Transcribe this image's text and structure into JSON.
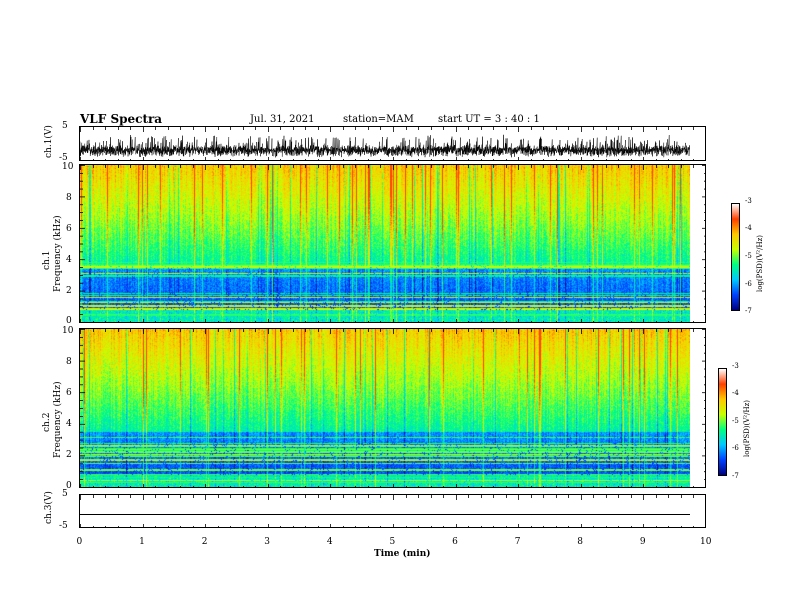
{
  "header": {
    "title": "VLF Spectra",
    "date": "Jul. 31, 2021",
    "station": "station=MAM",
    "start": "start UT =  3 : 40 : 1"
  },
  "x_axis": {
    "label": "Time (min)",
    "ticks": [
      "0",
      "1",
      "2",
      "3",
      "4",
      "5",
      "6",
      "7",
      "8",
      "9",
      "10"
    ]
  },
  "panels": {
    "ch1v": {
      "ylabel": "ch.1(V)",
      "ticks": [
        "5",
        "-5"
      ]
    },
    "ch1spec": {
      "ylabel_line1": "ch.1",
      "ylabel_line2": "Frequency (kHz)",
      "ticks": [
        "10",
        "8",
        "6",
        "4",
        "2",
        "0"
      ]
    },
    "ch2spec": {
      "ylabel_line1": "ch.2",
      "ylabel_line2": "Frequency (kHz)",
      "ticks": [
        "10",
        "8",
        "6",
        "4",
        "2",
        "0"
      ]
    },
    "ch3v": {
      "ylabel": "ch.3(V)",
      "ticks": [
        "5",
        "-5"
      ]
    }
  },
  "colorbar": {
    "label": "log(PSD)(V²/Hz)",
    "ticks": [
      "-3",
      "-4",
      "-5",
      "-6",
      "-7"
    ]
  },
  "chart_data": [
    {
      "type": "line",
      "name_panel": "ch.1(V)",
      "xlim": [
        0,
        10
      ],
      "ylim": [
        -5,
        5
      ],
      "xlabel": "Time (min)",
      "ylabel": "ch.1(V)"
    },
    {
      "type": "heatmap",
      "name_panel": "ch.1 spectrogram",
      "xlim": [
        0,
        10
      ],
      "ylim": [
        0,
        10
      ],
      "xlabel": "Time (min)",
      "ylabel": "Frequency (kHz)",
      "zlim": [
        -7,
        -3
      ],
      "colorbar_label": "log(PSD)(V²/Hz)",
      "colormap": [
        "#000080",
        "#0040ff",
        "#00c8ff",
        "#00ff80",
        "#c8ff00",
        "#ffc800",
        "#ff4000",
        "#ffffff"
      ]
    },
    {
      "type": "heatmap",
      "name_panel": "ch.2 spectrogram",
      "xlim": [
        0,
        10
      ],
      "ylim": [
        0,
        10
      ],
      "xlabel": "Time (min)",
      "ylabel": "Frequency (kHz)",
      "zlim": [
        -7,
        -3
      ],
      "colorbar_label": "log(PSD)(V²/Hz)",
      "colormap": [
        "#000080",
        "#0040ff",
        "#00c8ff",
        "#00ff80",
        "#c8ff00",
        "#ffc800",
        "#ff4000",
        "#ffffff"
      ]
    },
    {
      "type": "line",
      "name_panel": "ch.3(V)",
      "xlim": [
        0,
        10
      ],
      "ylim": [
        -5,
        5
      ],
      "xlabel": "Time (min)",
      "ylabel": "ch.3(V)"
    }
  ]
}
